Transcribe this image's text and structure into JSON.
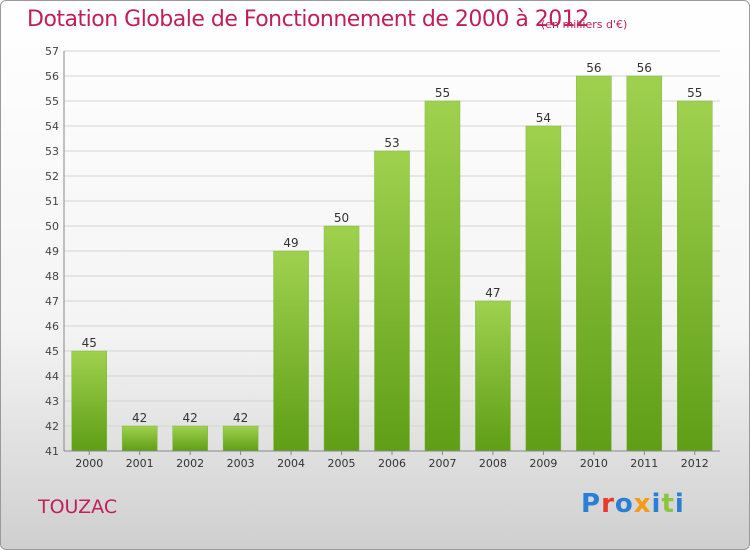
{
  "page": {
    "title": "Dotation Globale de Fonctionnement de 2000 à 2012",
    "subtitle": "(en milliers d'€)",
    "commune": "TOUZAC",
    "logo": "Proxiti"
  },
  "colors": {
    "title": "#c0205a",
    "bar_light": "#9fd14f",
    "bar_dark": "#5f9e16",
    "logo_letters": [
      "#2a7fd4",
      "#e8392c",
      "#2a7fd4",
      "#f39c12",
      "#2a7fd4",
      "#8cc63f",
      "#2a7fd4"
    ]
  },
  "chart_data": {
    "type": "bar",
    "title": "Dotation Globale de Fonctionnement de 2000 à 2012",
    "subtitle": "(en milliers d'€)",
    "categories": [
      "2000",
      "2001",
      "2002",
      "2003",
      "2004",
      "2005",
      "2006",
      "2007",
      "2008",
      "2009",
      "2010",
      "2011",
      "2012"
    ],
    "values": [
      45,
      42,
      42,
      42,
      49,
      50,
      53,
      55,
      47,
      54,
      56,
      56,
      55
    ],
    "ylim": [
      41,
      57
    ],
    "yticks": [
      41,
      42,
      43,
      44,
      45,
      46,
      47,
      48,
      49,
      50,
      51,
      52,
      53,
      54,
      55,
      56,
      57
    ],
    "grid": true,
    "legend": "none",
    "data_labels": true
  }
}
